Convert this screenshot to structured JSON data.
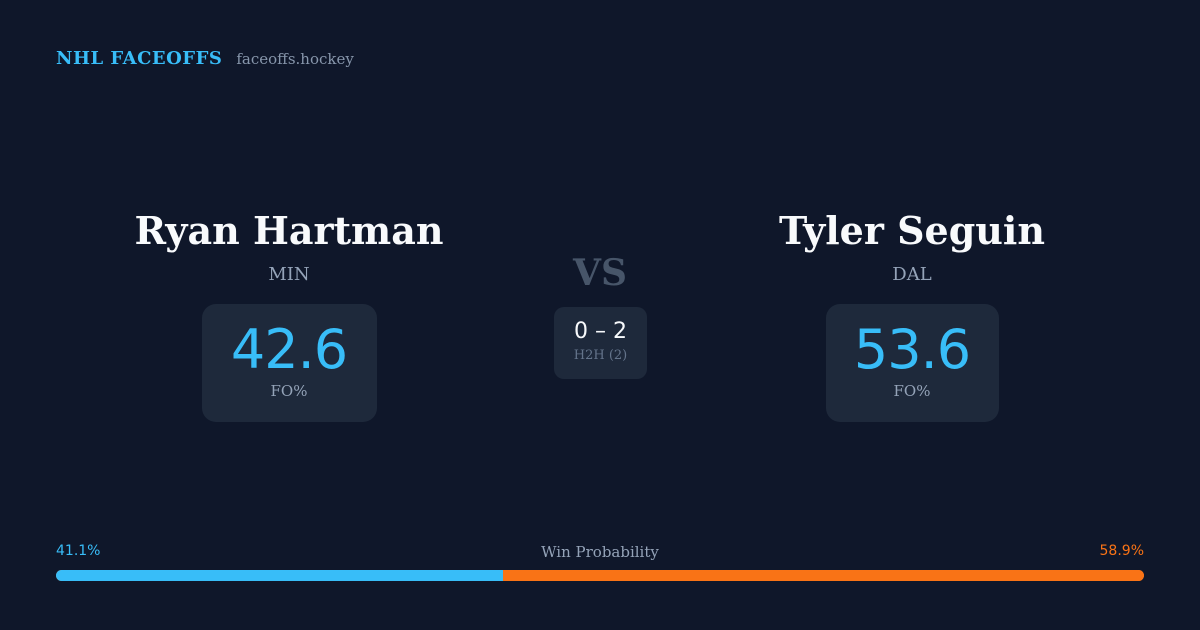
{
  "brand": {
    "title": "NHL FACEOFFS",
    "site": "faceoffs.hockey"
  },
  "left_player": {
    "name": "Ryan Hartman",
    "team": "MIN",
    "fo_pct": "42.6",
    "fo_label": "FO%"
  },
  "right_player": {
    "name": "Tyler Seguin",
    "team": "DAL",
    "fo_pct": "53.6",
    "fo_label": "FO%"
  },
  "vs_label": "VS",
  "h2h": {
    "score": "0 – 2",
    "label": "H2H (2)"
  },
  "win_probability": {
    "label": "Win Probability",
    "left_text": "41.1%",
    "right_text": "58.9%",
    "left_value": 41.1,
    "right_value": 58.9
  },
  "colors": {
    "background": "#0f172a",
    "card": "#1e293b",
    "accent_blue": "#38bdf8",
    "accent_orange": "#f97316"
  }
}
